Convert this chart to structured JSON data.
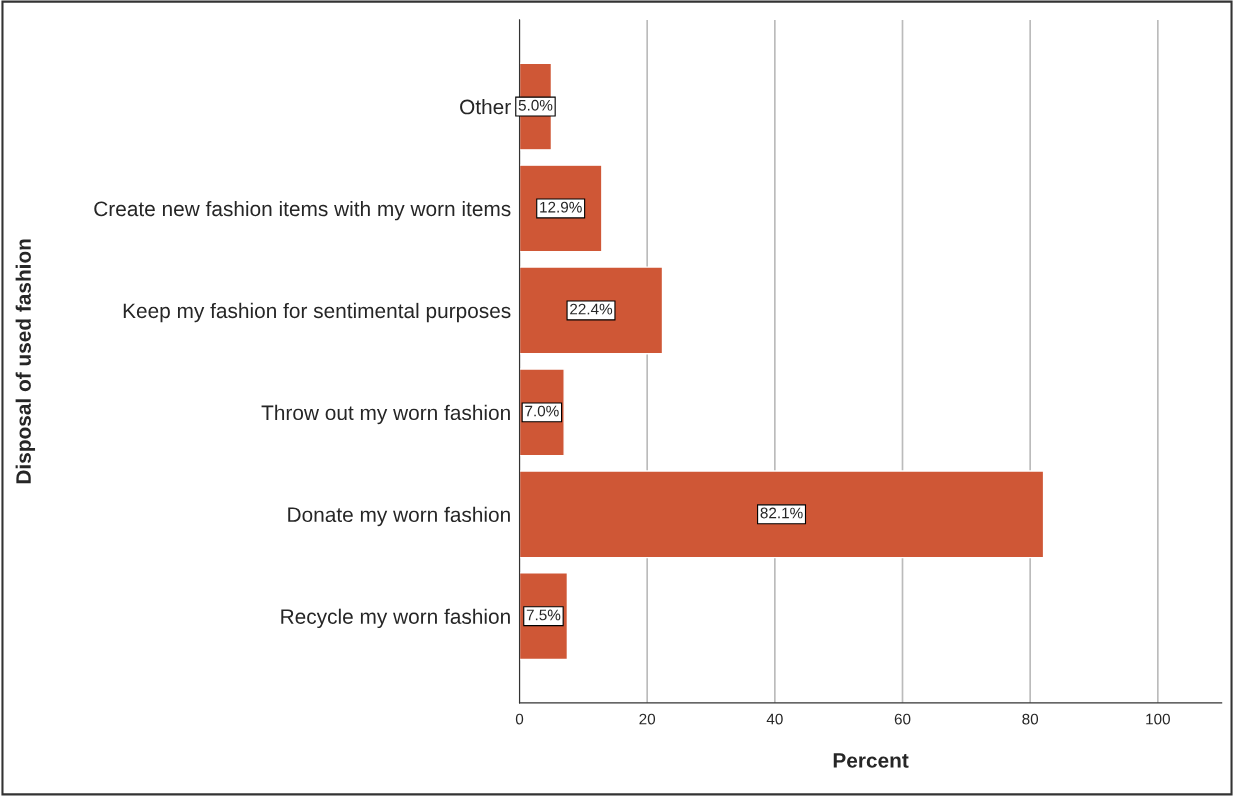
{
  "chart_data": {
    "type": "bar",
    "orientation": "horizontal",
    "xlabel": "Percent",
    "ylabel": "Disposal of used fashion",
    "categories": [
      "Other",
      "Create new fashion items with my worn items",
      "Keep my fashion for sentimental purposes",
      "Throw out my worn fashion",
      "Donate my worn fashion",
      "Recycle my worn fashion"
    ],
    "values": [
      5.0,
      12.9,
      22.4,
      7.0,
      82.1,
      7.5
    ],
    "value_labels": [
      "5.0%",
      "12.9%",
      "22.4%",
      "7.0%",
      "82.1%",
      "7.5%"
    ],
    "color": "#cf5736",
    "xlim": [
      0,
      110
    ],
    "xticks": [
      0,
      20,
      40,
      60,
      80,
      100
    ],
    "grid": "x"
  }
}
